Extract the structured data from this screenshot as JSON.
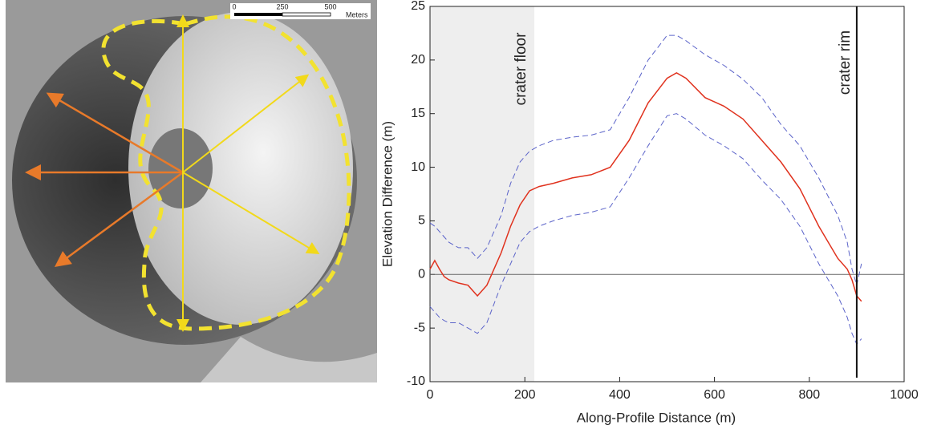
{
  "image": {
    "scale_labels": [
      "0",
      "250",
      "500"
    ],
    "scale_unit": "Meters"
  },
  "chart_data": {
    "type": "line",
    "x_label": "Along-Profile Distance (m)",
    "y_label": "Elevation Difference (m)",
    "x": [
      0,
      10,
      20,
      30,
      40,
      60,
      80,
      100,
      120,
      150,
      170,
      190,
      210,
      230,
      260,
      300,
      340,
      380,
      420,
      460,
      500,
      520,
      540,
      580,
      620,
      660,
      700,
      740,
      780,
      820,
      860,
      880,
      890,
      900,
      910
    ],
    "series": [
      {
        "color": "#e0321e",
        "dash": false,
        "values": [
          0.5,
          1.3,
          0.5,
          -0.2,
          -0.5,
          -0.8,
          -1.0,
          -2.0,
          -1.0,
          2.0,
          4.5,
          6.5,
          7.8,
          8.2,
          8.5,
          9.0,
          9.3,
          10.0,
          12.5,
          16.0,
          18.3,
          18.8,
          18.3,
          16.5,
          15.7,
          14.5,
          12.5,
          10.5,
          8.0,
          4.5,
          1.5,
          0.5,
          -0.5,
          -2.0,
          -2.5
        ]
      },
      {
        "color": "#5b63c9",
        "dash": true,
        "values": [
          4.8,
          4.5,
          4.0,
          3.5,
          3.0,
          2.5,
          2.5,
          1.5,
          2.5,
          5.5,
          8.5,
          10.5,
          11.5,
          12.0,
          12.5,
          12.8,
          13.0,
          13.5,
          16.5,
          20.0,
          22.3,
          22.3,
          21.8,
          20.5,
          19.5,
          18.2,
          16.5,
          14.0,
          12.0,
          9.0,
          5.5,
          3.0,
          0.5,
          -1.0,
          1.0
        ]
      },
      {
        "color": "#5b63c9",
        "dash": true,
        "values": [
          -3.0,
          -3.5,
          -4.0,
          -4.3,
          -4.5,
          -4.5,
          -5.0,
          -5.5,
          -4.5,
          -1.0,
          1.0,
          3.0,
          4.0,
          4.5,
          5.0,
          5.5,
          5.8,
          6.3,
          9.0,
          12.0,
          14.8,
          15.0,
          14.5,
          13.0,
          12.0,
          10.8,
          8.8,
          7.0,
          4.5,
          1.0,
          -2.0,
          -4.0,
          -5.5,
          -6.5,
          -6.0
        ]
      }
    ],
    "xlim": [
      0,
      1000
    ],
    "xticks": [
      0,
      200,
      400,
      600,
      800,
      1000
    ],
    "ylim": [
      -10,
      25
    ],
    "yticks": [
      -10,
      -5,
      0,
      5,
      10,
      15,
      20,
      25
    ],
    "reference_y": 0,
    "floor_region": {
      "text": "crater floor",
      "span": [
        0,
        220
      ]
    },
    "rim_line": {
      "text": "crater rim",
      "x": 900
    }
  }
}
